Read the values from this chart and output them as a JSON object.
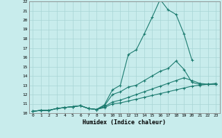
{
  "title": "",
  "xlabel": "Humidex (Indice chaleur)",
  "ylabel": "",
  "background_color": "#c8ecec",
  "grid_color": "#a8d4d4",
  "line_color": "#1a7a6e",
  "xlim": [
    -0.5,
    23.5
  ],
  "ylim": [
    10,
    22
  ],
  "xticks": [
    0,
    1,
    2,
    3,
    4,
    5,
    6,
    7,
    8,
    9,
    10,
    11,
    12,
    13,
    14,
    15,
    16,
    17,
    18,
    19,
    20,
    21,
    22,
    23
  ],
  "yticks": [
    10,
    11,
    12,
    13,
    14,
    15,
    16,
    17,
    18,
    19,
    20,
    21,
    22
  ],
  "series": [
    {
      "x": [
        0,
        1,
        2,
        3,
        4,
        5,
        6,
        7,
        8,
        9,
        10,
        11,
        12,
        13,
        14,
        15,
        16,
        17,
        18,
        19,
        20,
        21,
        22,
        23
      ],
      "y": [
        10.2,
        10.3,
        10.3,
        10.5,
        10.6,
        10.7,
        10.8,
        10.5,
        10.4,
        10.6,
        11.0,
        11.1,
        11.3,
        11.5,
        11.7,
        11.9,
        12.1,
        12.3,
        12.5,
        12.7,
        12.9,
        13.0,
        13.1,
        13.2
      ]
    },
    {
      "x": [
        0,
        1,
        2,
        3,
        4,
        5,
        6,
        7,
        8,
        9,
        10,
        11,
        12,
        13,
        14,
        15,
        16,
        17,
        18,
        19,
        20,
        21,
        22,
        23
      ],
      "y": [
        10.2,
        10.3,
        10.3,
        10.5,
        10.6,
        10.7,
        10.8,
        10.5,
        10.4,
        10.7,
        11.2,
        11.4,
        11.7,
        12.0,
        12.3,
        12.6,
        12.9,
        13.2,
        13.5,
        13.8,
        13.5,
        13.2,
        13.1,
        13.1
      ]
    },
    {
      "x": [
        0,
        1,
        2,
        3,
        4,
        5,
        6,
        7,
        8,
        9,
        10,
        11,
        12,
        13,
        14,
        15,
        16,
        17,
        18,
        19,
        20,
        21,
        22,
        23
      ],
      "y": [
        10.2,
        10.3,
        10.3,
        10.5,
        10.6,
        10.7,
        10.8,
        10.5,
        10.4,
        10.8,
        12.0,
        12.3,
        12.8,
        13.0,
        13.5,
        14.0,
        14.5,
        14.8,
        15.6,
        14.7,
        13.3,
        13.1,
        13.1,
        13.1
      ]
    },
    {
      "x": [
        0,
        1,
        2,
        3,
        4,
        5,
        6,
        7,
        8,
        9,
        10,
        11,
        12,
        13,
        14,
        15,
        16,
        17,
        18,
        19,
        20,
        21,
        22,
        23
      ],
      "y": [
        10.2,
        10.3,
        10.3,
        10.5,
        10.6,
        10.7,
        10.8,
        10.5,
        10.4,
        10.9,
        12.5,
        13.0,
        16.3,
        16.8,
        18.5,
        20.3,
        22.2,
        21.1,
        20.6,
        18.5,
        15.7,
        null,
        null,
        null
      ]
    }
  ]
}
